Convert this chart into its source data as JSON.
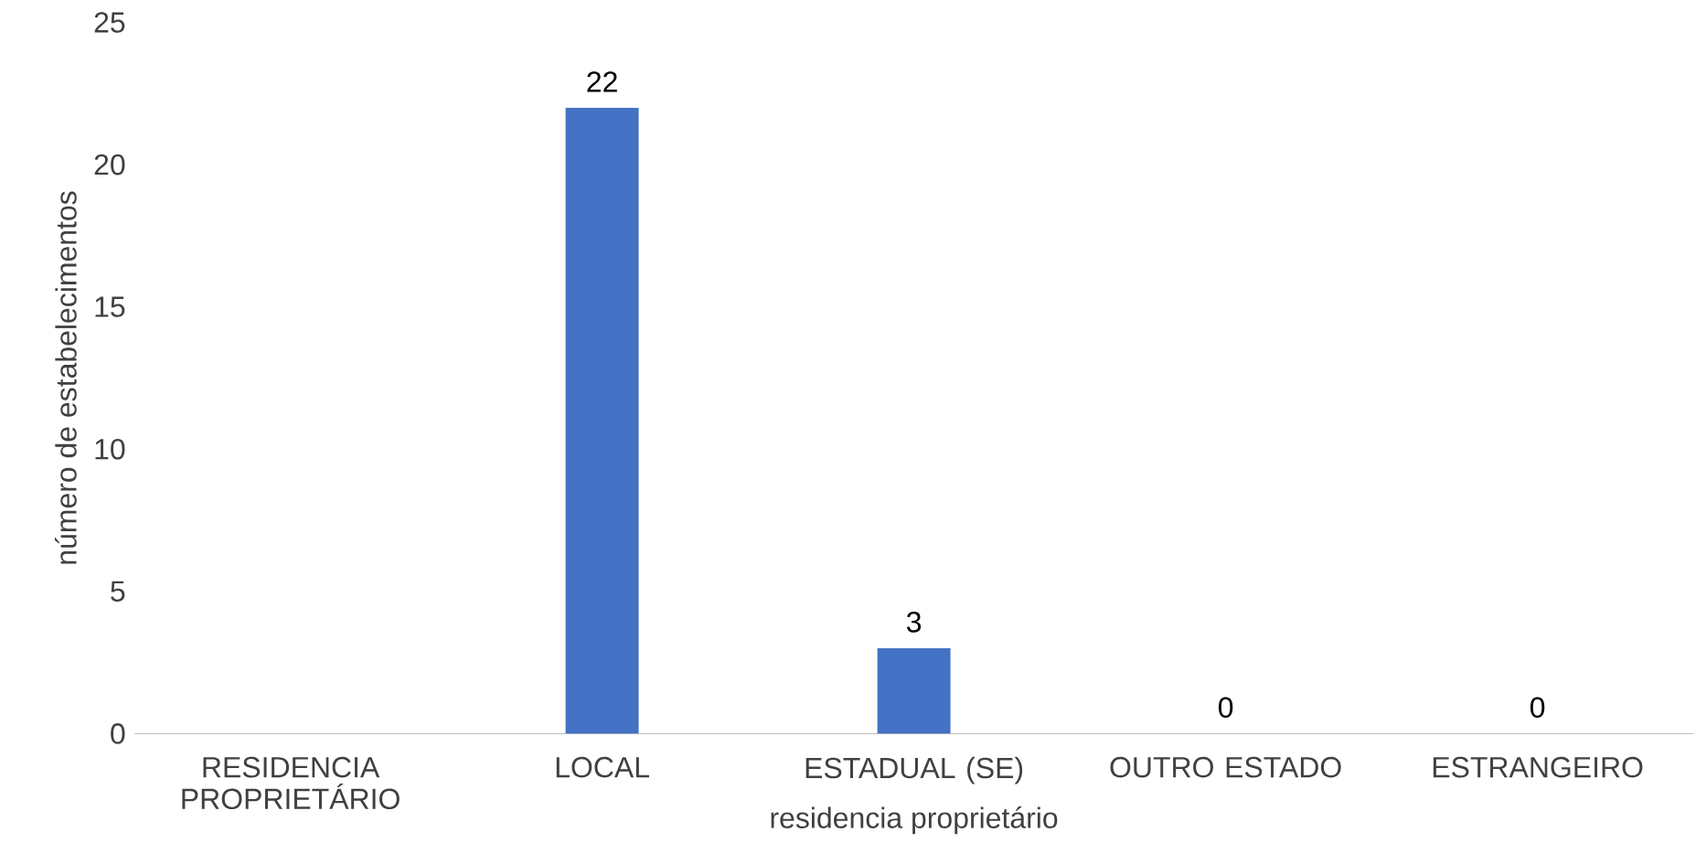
{
  "chart_data": {
    "type": "bar",
    "categories": [
      "RESIDENCIA PROPRIETÁRIO",
      "LOCAL",
      "ESTADUAL (SE)",
      "OUTRO ESTADO",
      "ESTRANGEIRO"
    ],
    "values": [
      null,
      22,
      3,
      0,
      0
    ],
    "color": "#4472c4",
    "data_labels": true,
    "ylim": [
      0,
      25
    ],
    "yticks": [
      0,
      5,
      10,
      15,
      20,
      25
    ],
    "xlabel": "residencia proprietário",
    "ylabel": "número de estabelecimentos"
  }
}
